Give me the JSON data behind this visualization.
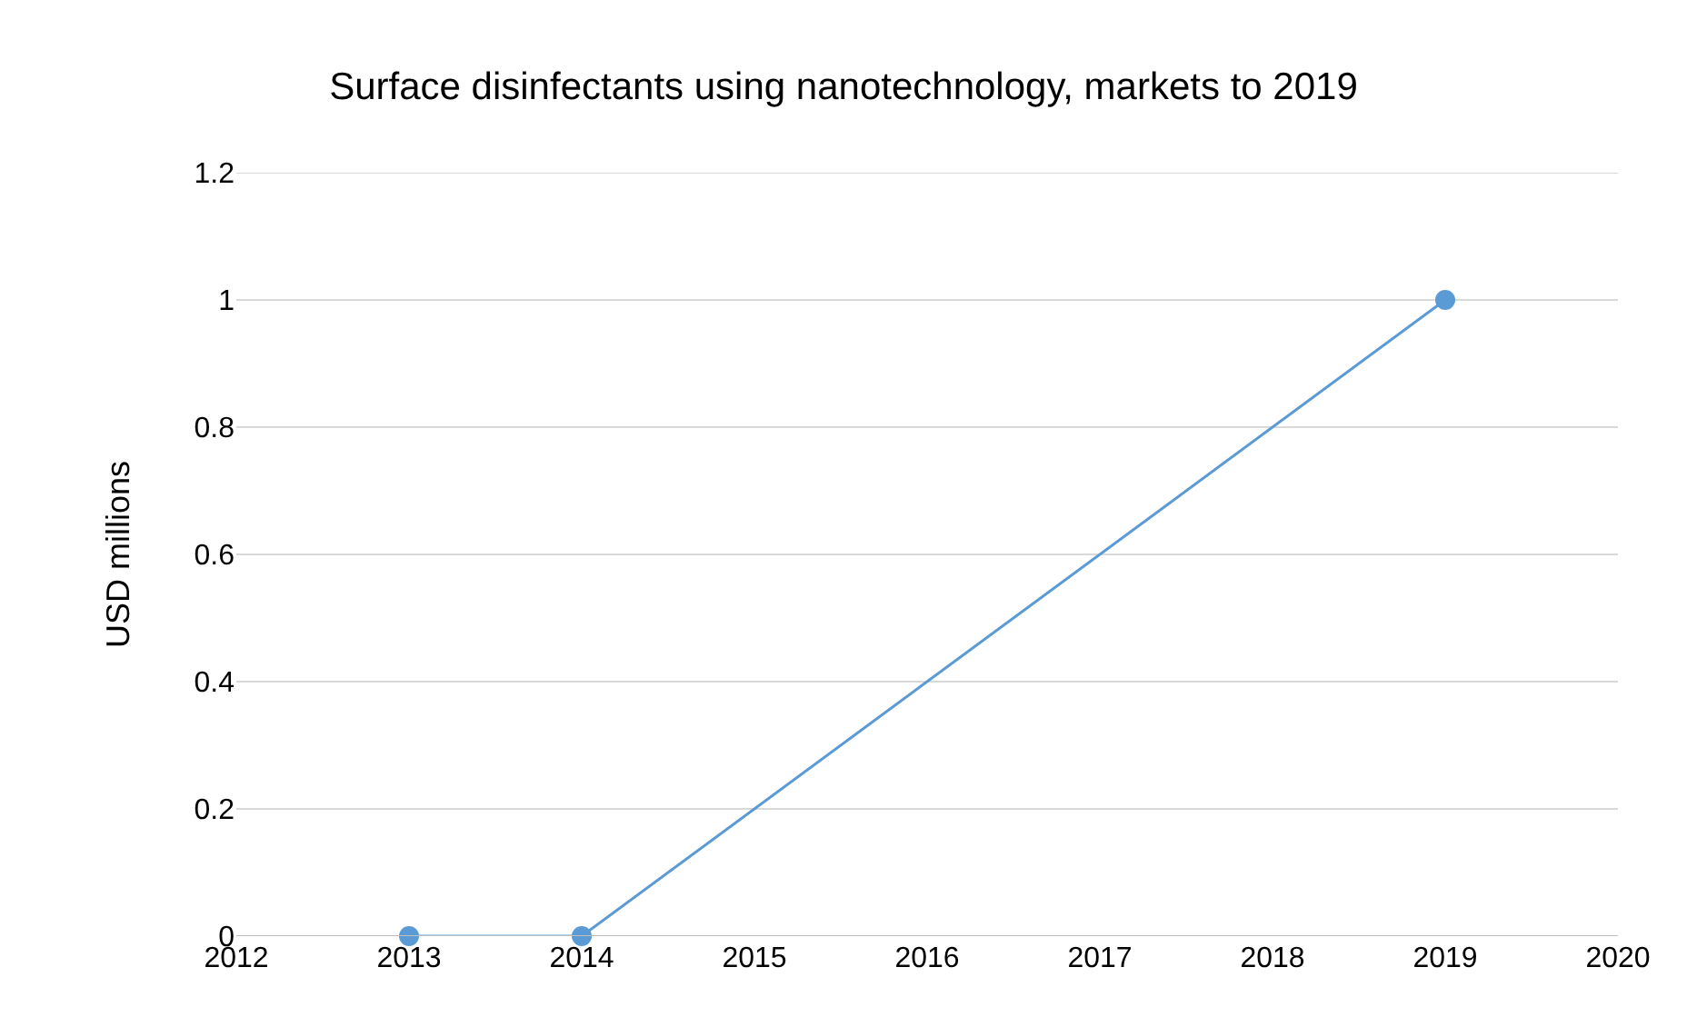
{
  "chart_data": {
    "type": "line",
    "title": "Surface disinfectants using nanotechnology, markets to 2019",
    "ylabel": "USD millions",
    "x": [
      2013,
      2014,
      2019
    ],
    "series": [
      {
        "color": "#5b9bd5",
        "values": [
          0,
          0,
          1
        ]
      }
    ],
    "xlim": [
      2012,
      2020
    ],
    "xticks": [
      2012,
      2013,
      2014,
      2015,
      2016,
      2017,
      2018,
      2019,
      2020
    ],
    "ylim": [
      0,
      1.2
    ],
    "yticks": [
      0,
      0.2,
      0.4,
      0.6,
      0.8,
      1,
      1.2
    ],
    "grid": "y",
    "marker": "circle",
    "line_style": "solid"
  }
}
